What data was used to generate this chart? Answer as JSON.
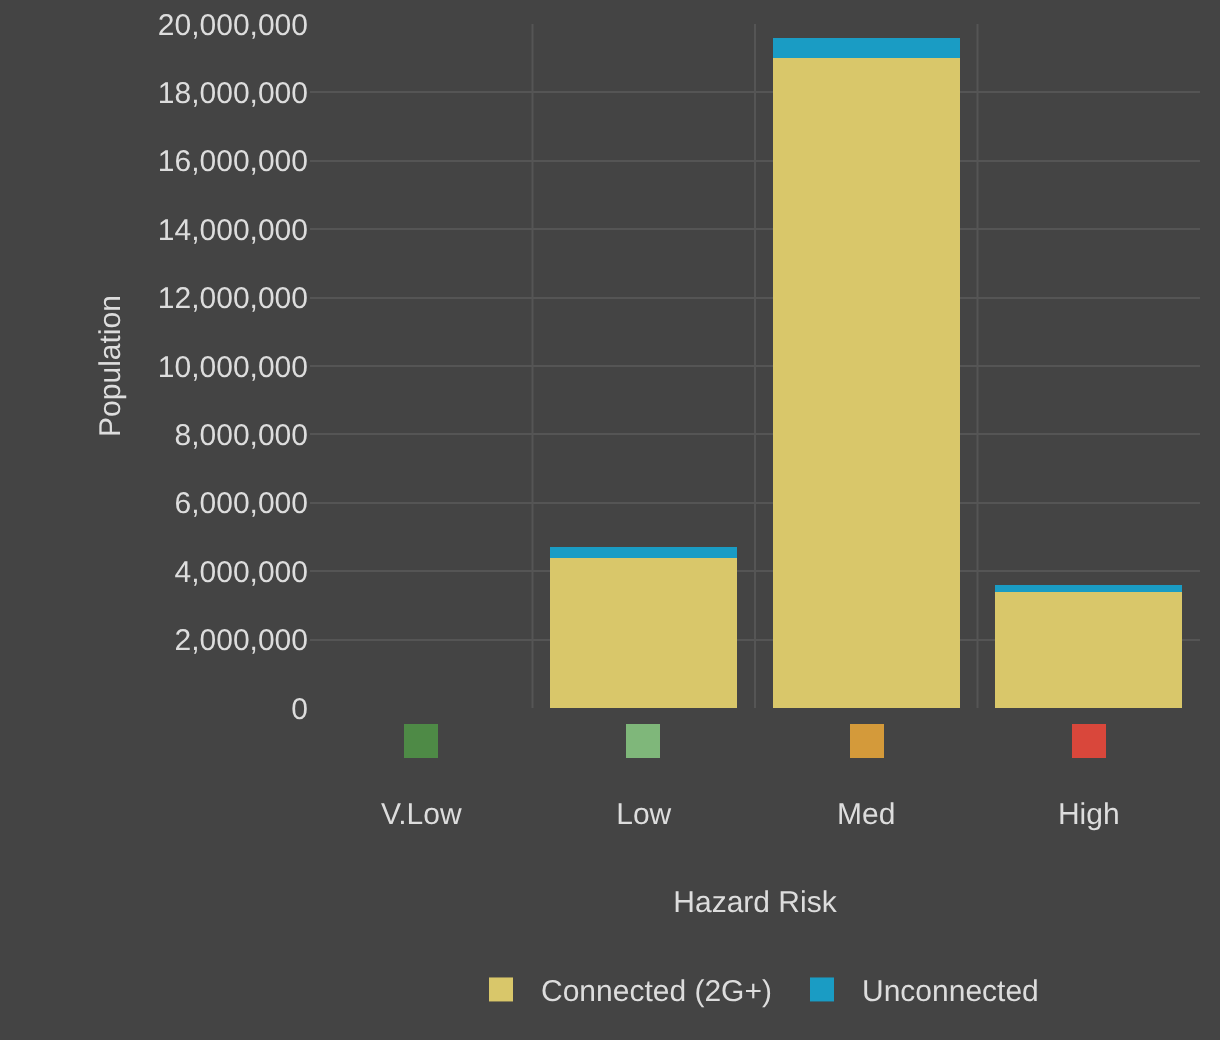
{
  "chart_data": {
    "type": "bar",
    "stacked": true,
    "xlabel": "Hazard Risk",
    "ylabel": "Population",
    "categories": [
      "V.Low",
      "Low",
      "Med",
      "High"
    ],
    "series": [
      {
        "name": "Connected (2G+)",
        "color": "#d9c76a",
        "values": [
          0,
          4400000,
          19000000,
          3400000
        ]
      },
      {
        "name": "Unconnected",
        "color": "#1a9cc4",
        "values": [
          0,
          300000,
          600000,
          200000
        ]
      }
    ],
    "ylim": [
      0,
      20000000
    ],
    "yticks": [
      0,
      {
        "value": 2000000,
        "label": "2,000,000"
      },
      {
        "value": 4000000,
        "label": "4,000,000"
      },
      {
        "value": 6000000,
        "label": "6,000,000"
      },
      {
        "value": 8000000,
        "label": "8,000,000"
      },
      {
        "value": 10000000,
        "label": "10,000,000"
      },
      {
        "value": 12000000,
        "label": "12,000,000"
      },
      {
        "value": 14000000,
        "label": "14,000,000"
      },
      {
        "value": 16000000,
        "label": "16,000,000"
      },
      {
        "value": 18000000,
        "label": "18,000,000"
      },
      {
        "value": 20000000,
        "label": "20,000,000"
      }
    ],
    "grid": true,
    "legend": "bottom"
  }
}
